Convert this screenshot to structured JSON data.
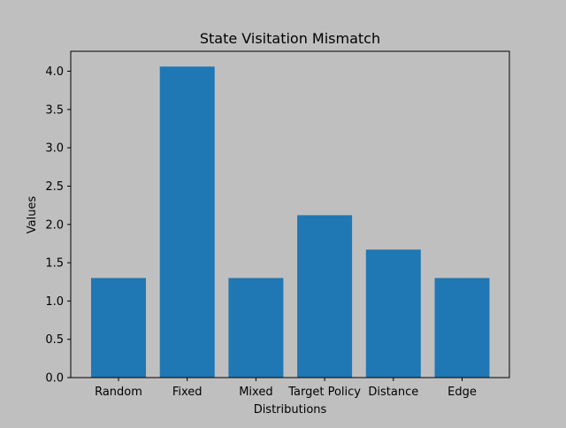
{
  "colors": {
    "background": "#bfbfbf",
    "bar": "#1f77b4"
  },
  "chart_data": {
    "type": "bar",
    "title": "State Visitation Mismatch",
    "xlabel": "Distributions",
    "ylabel": "Values",
    "categories": [
      "Random",
      "Fixed",
      "Mixed",
      "Target Policy",
      "Distance",
      "Edge"
    ],
    "values": [
      1.3,
      4.06,
      1.3,
      2.12,
      1.67,
      1.3
    ],
    "ylim": [
      0,
      4.26
    ],
    "yticks": [
      "0.0",
      "0.5",
      "1.0",
      "1.5",
      "2.0",
      "2.5",
      "3.0",
      "3.5",
      "4.0"
    ],
    "grid": false,
    "legend": "none"
  }
}
